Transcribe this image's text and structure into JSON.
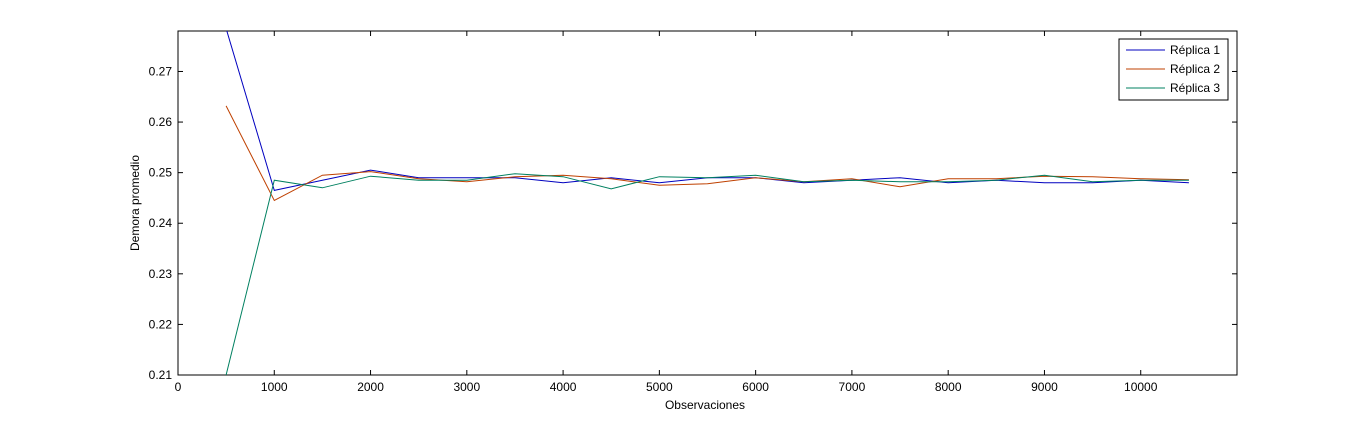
{
  "chart_data": {
    "type": "line",
    "title": "",
    "xlabel": "Observaciones",
    "ylabel": "Demora promedio",
    "xlim": [
      0,
      11000
    ],
    "ylim": [
      0.21,
      0.278
    ],
    "xticks": [
      0,
      1000,
      2000,
      3000,
      4000,
      5000,
      6000,
      7000,
      8000,
      9000,
      10000
    ],
    "yticks": [
      0.21,
      0.22,
      0.23,
      0.24,
      0.25,
      0.26,
      0.27
    ],
    "grid": false,
    "legend_position": "top-right",
    "x": [
      500,
      1000,
      1500,
      2000,
      2500,
      3000,
      3500,
      4000,
      4500,
      5000,
      5500,
      6000,
      6500,
      7000,
      7500,
      8000,
      8500,
      9000,
      9500,
      10000,
      10500
    ],
    "series": [
      {
        "name": "Réplica 1",
        "color": "#0000bf",
        "values": [
          0.2785,
          0.2465,
          0.2485,
          0.2505,
          0.249,
          0.249,
          0.249,
          0.248,
          0.249,
          0.248,
          0.249,
          0.249,
          0.248,
          0.2485,
          0.249,
          0.248,
          0.2485,
          0.248,
          0.248,
          0.2485,
          0.248
        ]
      },
      {
        "name": "Réplica 2",
        "color": "#bf4000",
        "values": [
          0.2632,
          0.2445,
          0.2495,
          0.2502,
          0.2488,
          0.2482,
          0.2492,
          0.2495,
          0.2488,
          0.2475,
          0.2478,
          0.249,
          0.2482,
          0.2488,
          0.2472,
          0.2488,
          0.2488,
          0.2493,
          0.2492,
          0.2488,
          0.2486
        ]
      },
      {
        "name": "Réplica 3",
        "color": "#008060",
        "values": [
          0.21,
          0.2485,
          0.247,
          0.2493,
          0.2485,
          0.2485,
          0.2498,
          0.2492,
          0.2468,
          0.2492,
          0.249,
          0.2495,
          0.2482,
          0.2485,
          0.2482,
          0.2482,
          0.2485,
          0.2495,
          0.2482,
          0.2485,
          0.2485
        ]
      }
    ]
  }
}
